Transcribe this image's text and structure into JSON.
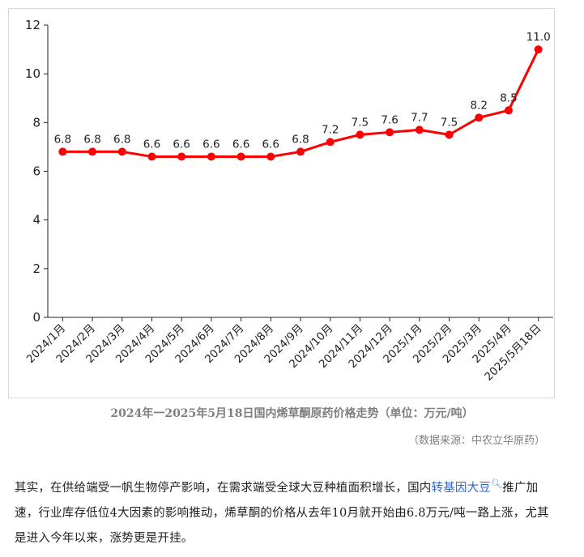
{
  "chart_data": {
    "type": "line",
    "categories": [
      "2024/1月",
      "2024/2月",
      "2024/3月",
      "2024/4月",
      "2024/5月",
      "2024/6月",
      "2024/7月",
      "2024/8月",
      "2024/9月",
      "2024/10月",
      "2024/11月",
      "2024/12月",
      "2025/1月",
      "2025/2月",
      "2025/3月",
      "2025/4月",
      "2025/5月18日"
    ],
    "series": [
      {
        "values": [
          6.8,
          6.8,
          6.8,
          6.6,
          6.6,
          6.6,
          6.6,
          6.6,
          6.8,
          7.2,
          7.5,
          7.6,
          7.7,
          7.5,
          8.2,
          8.5,
          11.0
        ],
        "labels": [
          "6.8",
          "6.8",
          "6.8",
          "6.6",
          "6.6",
          "6.6",
          "6.6",
          "6.6",
          "6.8",
          "7.2",
          "7.5",
          "7.6",
          "7.7",
          "7.5",
          "8.2",
          "8.5",
          "11.0"
        ]
      }
    ],
    "yticks": [
      "0",
      "2",
      "4",
      "6",
      "8",
      "10",
      "12"
    ],
    "ylim": [
      0,
      12
    ],
    "grid": false,
    "line_color": "#ff0000"
  },
  "caption": "2024年一2025年5月18日国内烯草酮原药价格走势（单位：万元/吨）",
  "source": "（数据来源：中农立华原药）",
  "paragraph": {
    "before_link": "其实，在供给端受一帆生物停产影响，在需求端受全球大豆种植面积增长，国内",
    "link": "转基因大豆",
    "after_link": "推广加速，行业库存低位4大因素的影响推动，烯草酮的价格从去年10月就开始由6.8万元/吨一路上涨，尤其是进入今年以来，涨势更是开挂。"
  }
}
